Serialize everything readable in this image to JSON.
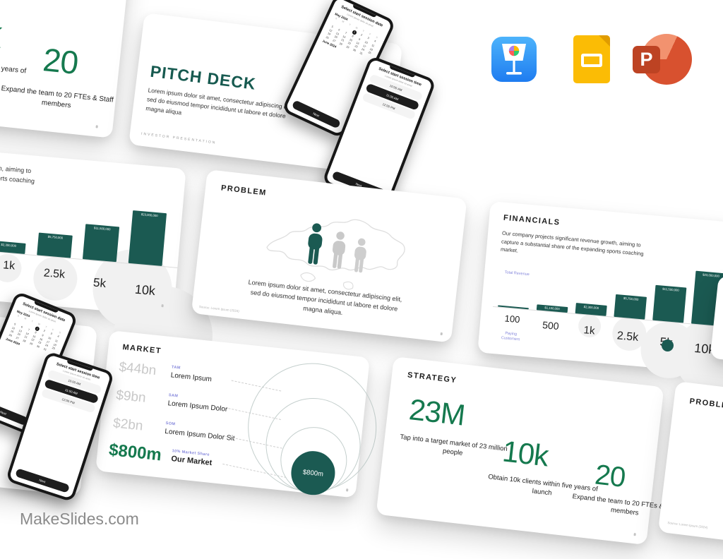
{
  "brand": {
    "site": "MakeSlides.com"
  },
  "export_icons": {
    "keynote": "Keynote",
    "google_slides": "Google Slides",
    "powerpoint": "PowerPoint",
    "powerpoint_letter": "P"
  },
  "colors": {
    "teal_dark": "#1B5A52",
    "green_accent": "#15794E",
    "purple_label": "#8486DB",
    "gray_amount": "#C9C9C9",
    "keynote_blue": "#1E7CF0",
    "slides_yellow": "#FBBC05",
    "powerpoint_orange": "#D8512F"
  },
  "phone_date": {
    "header": "Select start session date",
    "subheader": "Lorem ipsum dolor sit amet",
    "weekdays": [
      "S",
      "M",
      "T",
      "W",
      "T",
      "F",
      "S"
    ],
    "month_may": "May 2024",
    "days_in_month": 31,
    "selected_day": 1,
    "month_june": "June 2024",
    "next_button": "Next"
  },
  "phone_time": {
    "header": "Select start session time",
    "subheader": "Lorem ipsum dolor sit amet",
    "times": [
      "10:00 AM",
      "11:00 AM",
      "12:00 PM"
    ],
    "selected_time": "11:00 AM",
    "next_button": "Next"
  },
  "slides": {
    "cover": {
      "title": "PITCH DECK",
      "body_lines": [
        "Lorem ipsum dolor sit amet, consectetur adipiscing elit,",
        "sed do eiusmod tempor incididunt ut labore et dolore",
        "magna aliqua"
      ],
      "footer": "INVESTOR  PRESENTATION"
    },
    "strategy": {
      "title": "STRATEGY",
      "items": [
        {
          "value": "23M",
          "desc": "Tap into a target market of 23 million people"
        },
        {
          "value": "10k",
          "desc": "Obtain 10k clients within five years of launch"
        },
        {
          "value": "20",
          "desc": "Expand the team to 20 FTEs & Staff members"
        }
      ]
    },
    "problem": {
      "title": "PROBLEM",
      "body_lines": [
        "Lorem ipsum dolor sit amet, consectetur adipiscing elit,",
        "sed do eiusmod tempor incididunt ut labore et dolore",
        "magna aliqua."
      ],
      "source": "Source: Lorem Ipsum (2024)"
    },
    "financials": {
      "title": "FINANCIALS",
      "body_lines": [
        "Our company projects significant revenue growth, aiming to",
        "capture a substantial share of the expanding sports coaching",
        "market."
      ],
      "y_axis_label": "Total Revenue",
      "x_axis_label": "Paying Customers",
      "chart": {
        "type": "bar",
        "categories": [
          "100",
          "500",
          "1k",
          "2.5k",
          "5k",
          "10k"
        ],
        "values": [
          230000,
          1150000,
          2300000,
          5750000,
          11500000,
          23000000
        ],
        "value_labels": [
          "$230,000",
          "$1,150,000",
          "$2,300,000",
          "$5,750,000",
          "$11,500,000",
          "$23,000,000"
        ]
      }
    },
    "market": {
      "title": "MARKET",
      "rows": [
        {
          "amount": "$44bn",
          "tag": "TAM",
          "label": "Lorem Ipsum"
        },
        {
          "amount": "$9bn",
          "tag": "SAM",
          "label": "Lorem Ipsum Dolor"
        },
        {
          "amount": "$2bn",
          "tag": "SOM",
          "label": "Lorem Ipsum Dolor Sit"
        },
        {
          "amount": "$800m",
          "tag": "10% Market Share",
          "label": "Our Market"
        }
      ],
      "circle_label": "$800m"
    }
  }
}
